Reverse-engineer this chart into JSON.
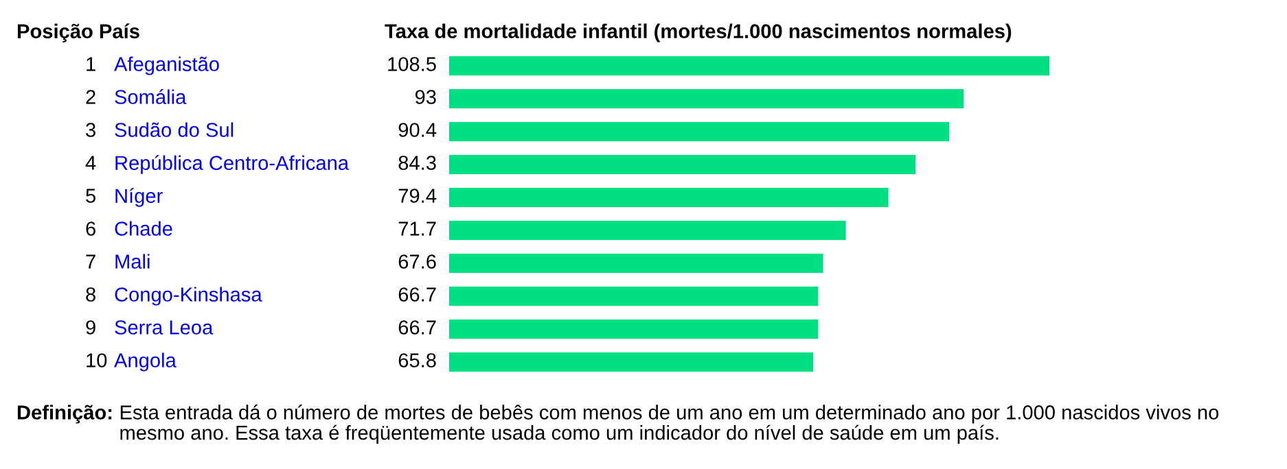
{
  "chart_data": {
    "type": "bar",
    "orientation": "horizontal",
    "title": "Taxa de mortalidade infantil (mortes/1.000 nascimentos normales)",
    "ylabel": "Posição País",
    "categories": [
      "1 Afeganistão",
      "2 Somália",
      "3 Sudão do Sul",
      "4 República Centro-Africana",
      "5 Níger",
      "6 Chade",
      "7 Mali",
      "8 Congo-Kinshasa",
      "9 Serra Leoa",
      "10 Angola"
    ],
    "values": [
      108.5,
      93,
      90.4,
      84.3,
      79.4,
      71.7,
      67.6,
      66.7,
      66.7,
      65.8
    ],
    "color": "#00e083",
    "data_labels": true,
    "annotations": [
      "Definição: Esta entrada dá o número de mortes de bebês com menos de um ano em um determinado ano por 1.000 nascidos vivos no mesmo ano. Essa taxa é freqüentemente usada como um indicador do nível de saúde em um país."
    ]
  }
}
